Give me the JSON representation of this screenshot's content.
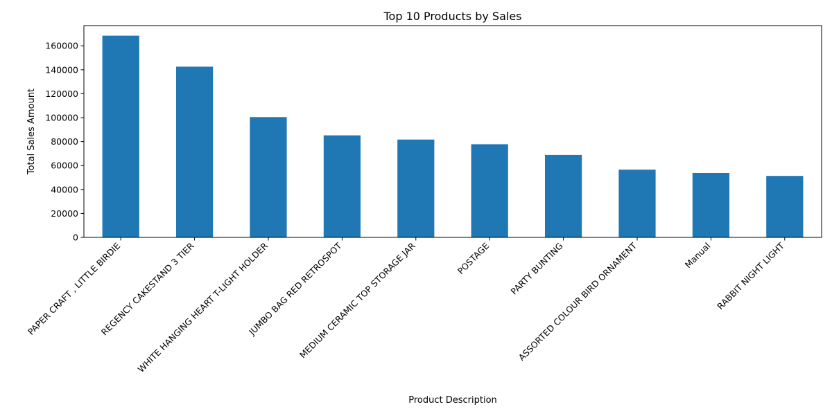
{
  "chart_data": {
    "type": "bar",
    "title": "Top 10 Products by Sales",
    "xlabel": "Product Description",
    "ylabel": "Total Sales Amount",
    "categories": [
      "PAPER CRAFT , LITTLE BIRDIE",
      "REGENCY CAKESTAND 3 TIER",
      "WHITE HANGING HEART T-LIGHT HOLDER",
      "JUMBO BAG RED RETROSPOT",
      "MEDIUM CERAMIC TOP STORAGE JAR",
      "POSTAGE",
      "PARTY BUNTING",
      "ASSORTED COLOUR BIRD ORNAMENT",
      "Manual",
      "RABBIT NIGHT LIGHT"
    ],
    "values": [
      168470,
      142593,
      100448,
      85221,
      81700,
      77804,
      68845,
      56580,
      53780,
      51346
    ],
    "ylim": [
      0,
      176900
    ],
    "yticks": [
      0,
      20000,
      40000,
      60000,
      80000,
      100000,
      120000,
      140000,
      160000
    ],
    "bar_color": "#1f77b4",
    "grid": false,
    "legend": "none"
  }
}
